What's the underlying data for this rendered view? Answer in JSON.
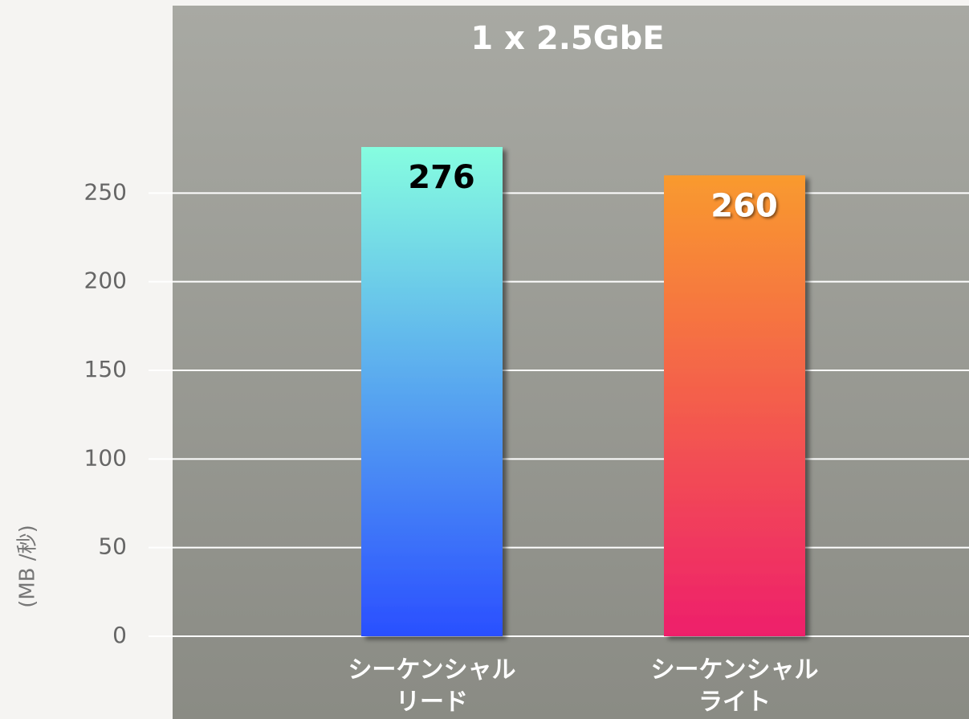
{
  "chart_data": {
    "type": "bar",
    "title": "1 x 2.5GbE",
    "y_label": "(MB /秒)",
    "categories": [
      [
        "シーケンシャル",
        "リード"
      ],
      [
        "シーケンシャル",
        "ライト"
      ]
    ],
    "values": [
      276,
      260
    ],
    "colors": [
      [
        "#86fde0",
        "#2a4fff"
      ],
      [
        "#f99a2e",
        "#ee1f6b"
      ]
    ],
    "label_colors": [
      "#000000",
      "#ffffff"
    ],
    "ylim": [
      0,
      300
    ],
    "yticks": [
      0,
      50,
      100,
      150,
      200,
      250
    ],
    "grid": true
  }
}
